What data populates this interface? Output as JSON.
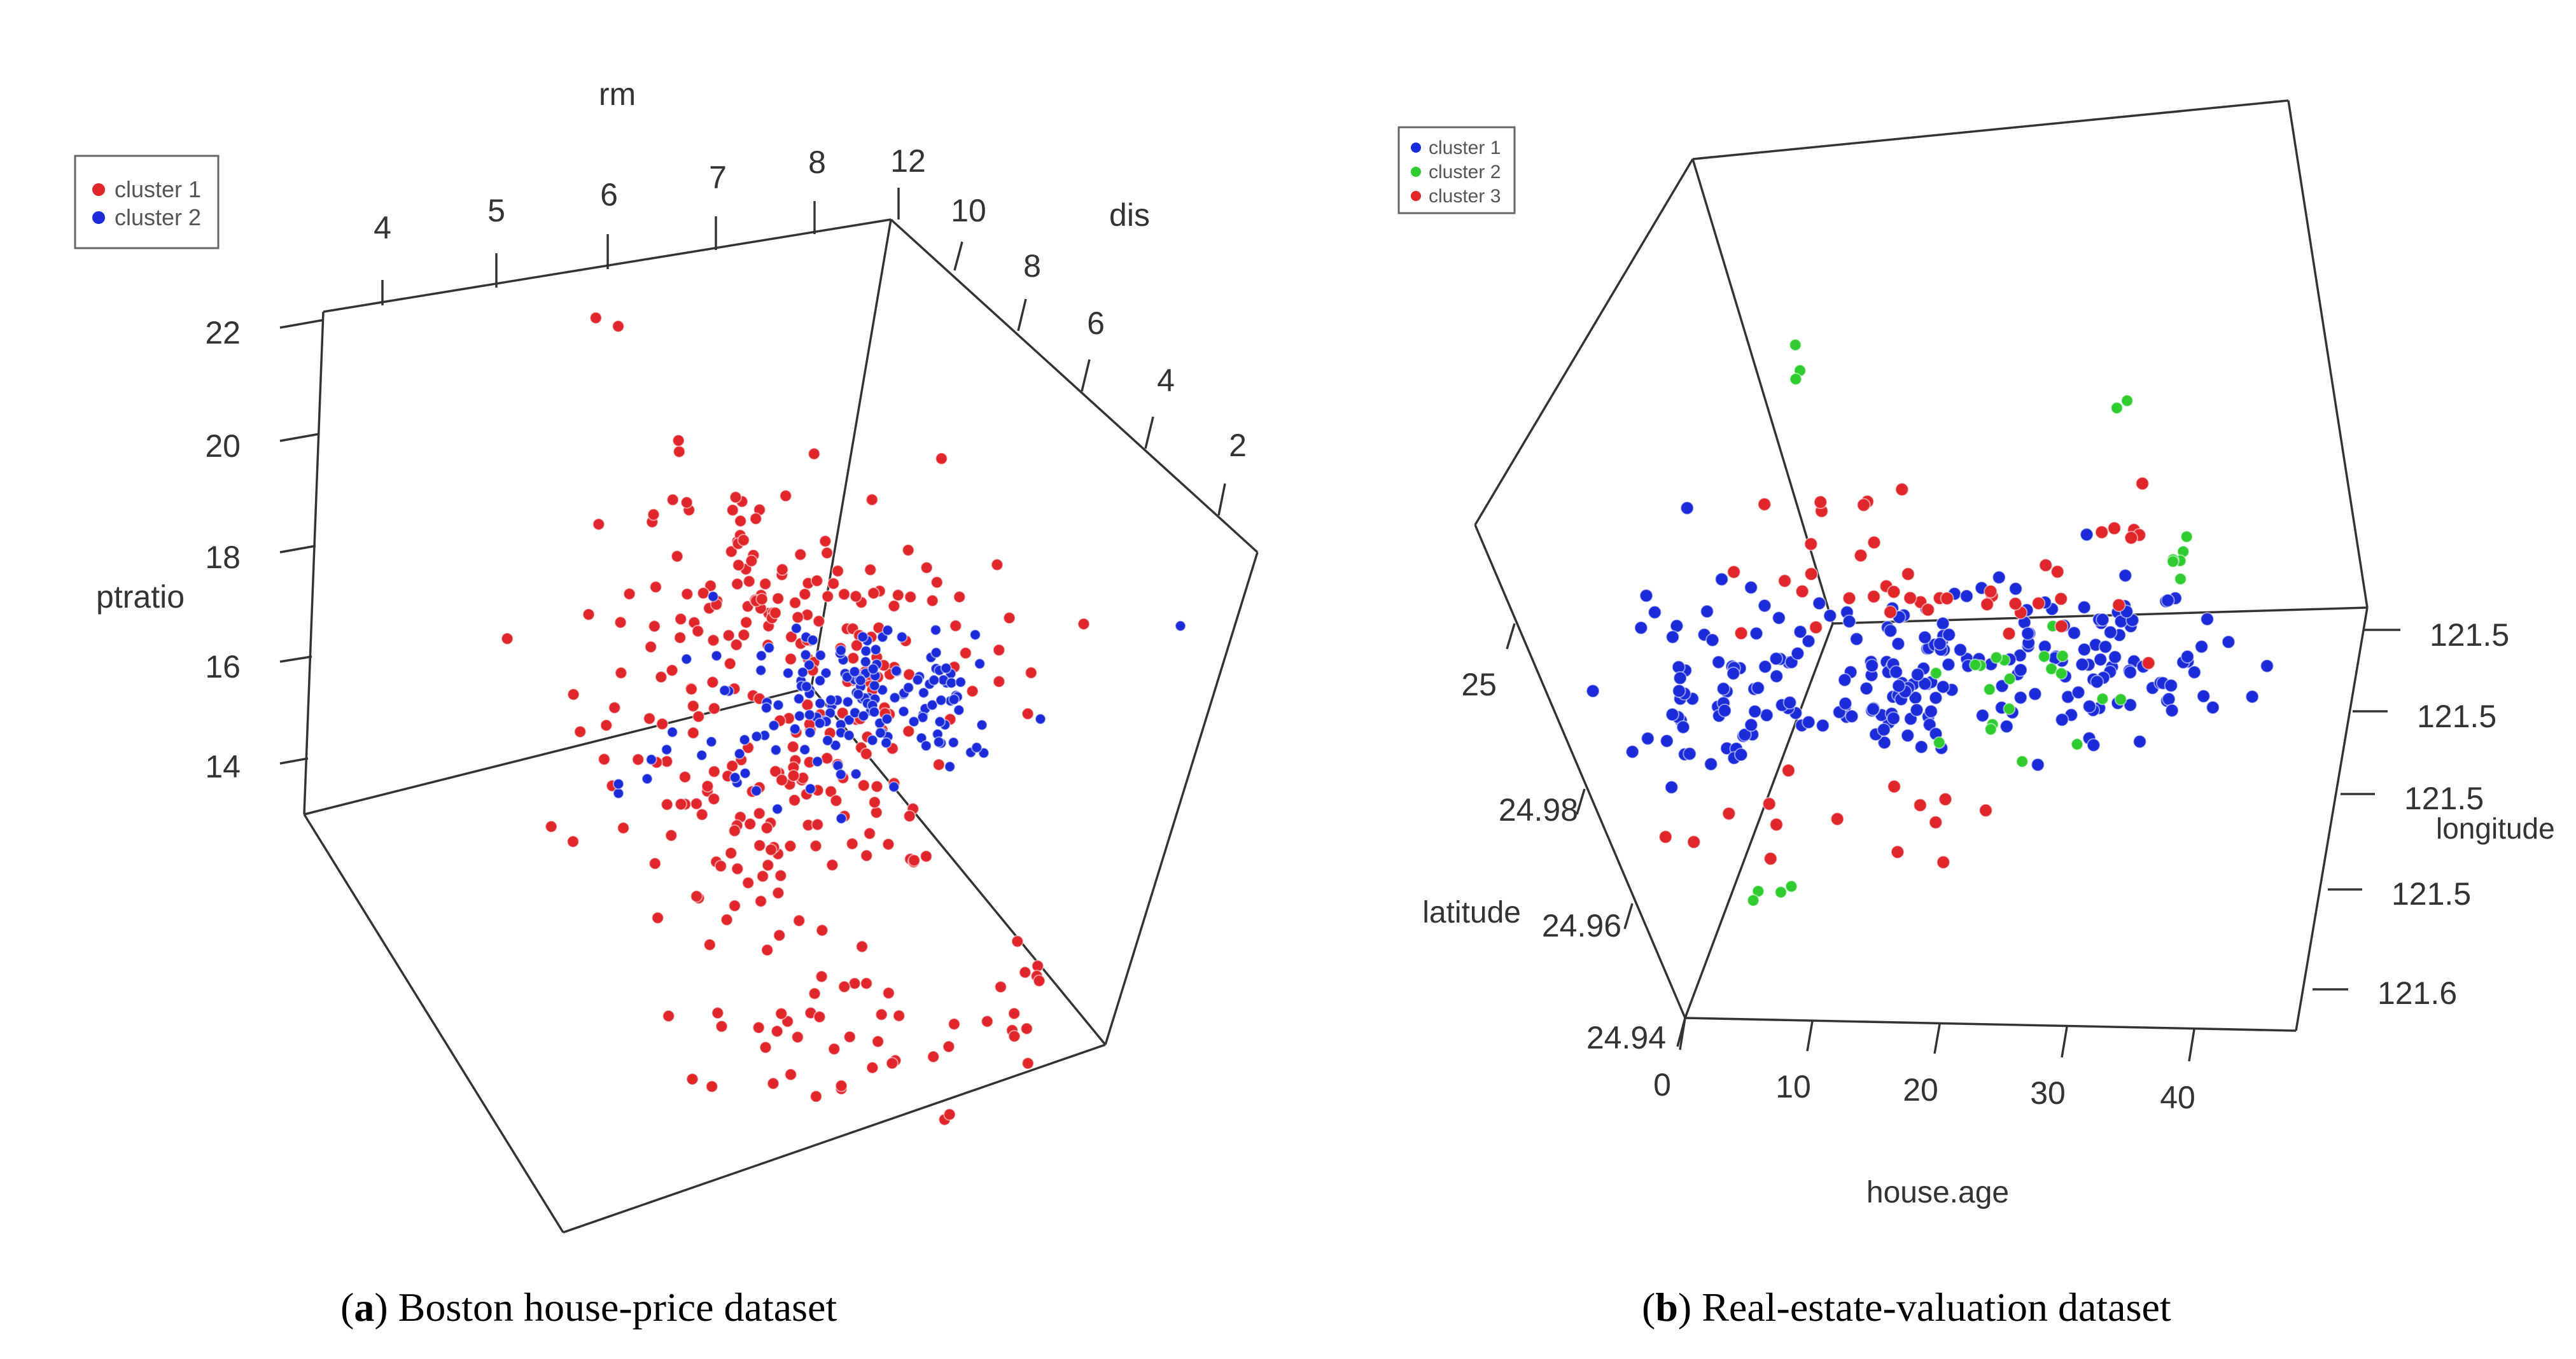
{
  "panels": [
    {
      "id": "a",
      "caption_label": "a",
      "caption_text": "Boston house-price dataset"
    },
    {
      "id": "b",
      "caption_label": "b",
      "caption_text": "Real-estate-valuation dataset"
    }
  ],
  "chart_data": [
    {
      "type": "scatter",
      "projection": "3d",
      "title": "",
      "axes": {
        "rm": {
          "label": "rm",
          "ticks": [
            "4",
            "5",
            "6",
            "7",
            "8"
          ]
        },
        "dis": {
          "label": "dis",
          "ticks": [
            "12",
            "10",
            "8",
            "6",
            "4",
            "2"
          ]
        },
        "ptratio": {
          "label": "ptratio",
          "ticks": [
            "22",
            "20",
            "18",
            "16",
            "14"
          ]
        }
      },
      "legend": {
        "position": "top-left",
        "entries": [
          "cluster 1",
          "cluster 2"
        ]
      },
      "series": [
        {
          "name": "cluster 1",
          "color": "#e0262b",
          "count": 330,
          "rm_range": [
            3.6,
            8.8
          ],
          "dis_range": [
            1.1,
            12.1
          ],
          "ptratio_range": [
            12.6,
            22.0
          ]
        },
        {
          "name": "cluster 2",
          "color": "#1b2bd9",
          "count": 170,
          "rm_range": [
            5.8,
            8.8
          ],
          "dis_range": [
            1.1,
            6.5
          ],
          "ptratio_range": [
            13.0,
            18.5
          ]
        }
      ]
    },
    {
      "type": "scatter",
      "projection": "3d",
      "title": "",
      "axes": {
        "house_age": {
          "label": "house.age",
          "ticks": [
            "0",
            "10",
            "20",
            "30",
            "40"
          ]
        },
        "latitude": {
          "label": "latitude",
          "ticks": [
            "25",
            "24.98",
            "24.96",
            "24.94"
          ]
        },
        "longitude": {
          "label": "longitude",
          "ticks": [
            "121.5",
            "121.5",
            "121.5",
            "121.5",
            "121.6"
          ]
        }
      },
      "legend": {
        "position": "top-left",
        "entries": [
          "cluster 1",
          "cluster 2",
          "cluster 3"
        ]
      },
      "series": [
        {
          "name": "cluster 1",
          "color": "#1b2bd9",
          "count": 250,
          "house_age_range": [
            0,
            43
          ],
          "latitude_range": [
            24.95,
            25.01
          ]
        },
        {
          "name": "cluster 2",
          "color": "#2ecc2e",
          "count": 35,
          "house_age_range": [
            8,
            40
          ],
          "latitude_range": [
            24.94,
            25.01
          ]
        },
        {
          "name": "cluster 3",
          "color": "#e0262b",
          "count": 60,
          "house_age_range": [
            5,
            38
          ],
          "latitude_range": [
            24.94,
            25.0
          ]
        }
      ]
    }
  ]
}
